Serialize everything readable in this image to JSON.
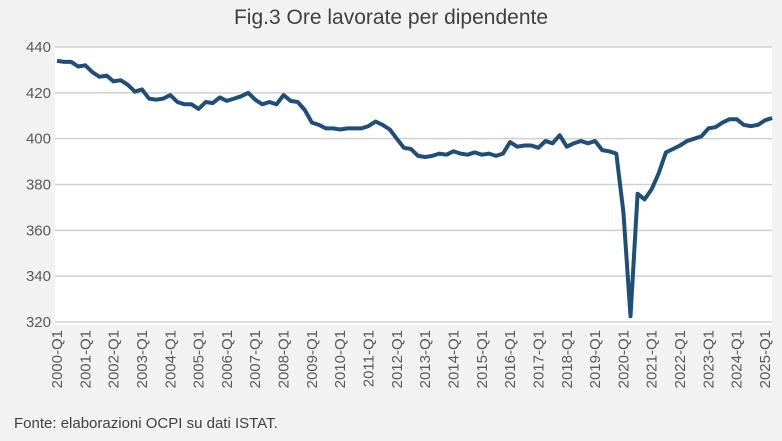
{
  "chart_data": {
    "type": "line",
    "title": "Fig.3 Ore lavorate per dipendente",
    "source": "Fonte: elaborazioni OCPI su dati ISTAT.",
    "xlabel": "",
    "ylabel": "",
    "ylim": [
      320,
      440
    ],
    "yticks": [
      320,
      340,
      360,
      380,
      400,
      420,
      440
    ],
    "grid": true,
    "line_color": "#1f4e79",
    "xtick_labels": [
      "2000-Q1",
      "2001-Q1",
      "2002-Q1",
      "2003-Q1",
      "2004-Q1",
      "2005-Q1",
      "2006-Q1",
      "2007-Q1",
      "2008-Q1",
      "2009-Q1",
      "2010-Q1",
      "2011-Q1",
      "2012-Q1",
      "2013-Q1",
      "2014-Q1",
      "2015-Q1",
      "2016-Q1",
      "2017-Q1",
      "2018-Q1",
      "2019-Q1",
      "2020-Q1",
      "2021-Q1",
      "2022-Q1",
      "2023-Q1",
      "2024-Q1",
      "2025-Q1"
    ],
    "series": [
      {
        "name": "Ore lavorate per dipendente",
        "start": "2000-Q1",
        "values": [
          434,
          433.5,
          433.5,
          431.5,
          432,
          429,
          427,
          427.5,
          425,
          425.5,
          423.5,
          420.5,
          421.5,
          417.5,
          417,
          417.5,
          419,
          416,
          415,
          415,
          413,
          416,
          415.5,
          418,
          416.5,
          417.5,
          418.5,
          420,
          417,
          415,
          416,
          415,
          419,
          416.5,
          416,
          412.5,
          407,
          406,
          404.5,
          404.5,
          404,
          404.5,
          404.5,
          404.5,
          405.5,
          407.5,
          406,
          404,
          400,
          396,
          395.5,
          392.5,
          392,
          392.5,
          393.5,
          393,
          394.5,
          393.5,
          393,
          394,
          393,
          393.5,
          392.5,
          393.5,
          398.5,
          396.5,
          397,
          397,
          396,
          399,
          398,
          401.5,
          396.5,
          398,
          399,
          398,
          399,
          395,
          394.5,
          393.5,
          368,
          322.5,
          376,
          373.5,
          378,
          385,
          394,
          395.5,
          397,
          399,
          400,
          401,
          404.5,
          405,
          407,
          408.5,
          408.5,
          406,
          405.5,
          406,
          408,
          409
        ]
      }
    ]
  }
}
